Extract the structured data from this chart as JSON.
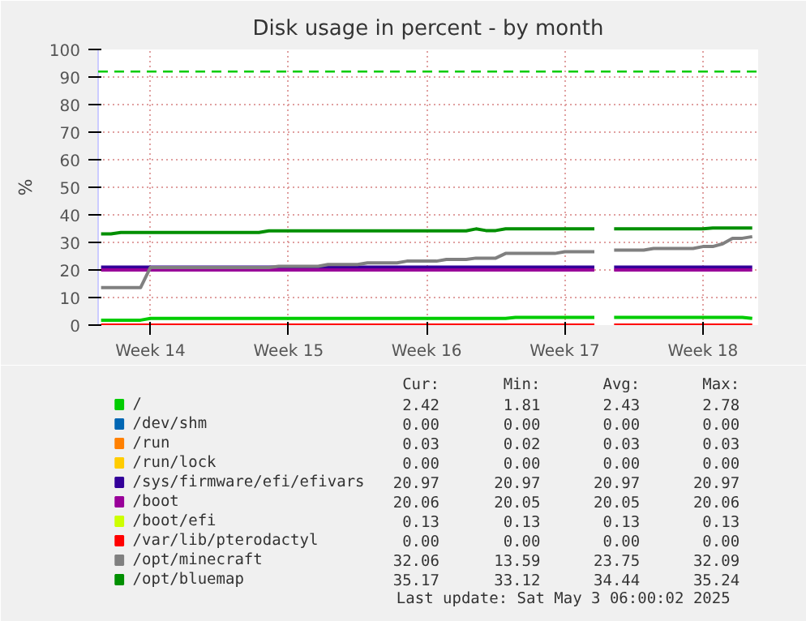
{
  "chart_data": {
    "type": "line",
    "title": "Disk usage in percent - by month",
    "ylabel": "%",
    "categories": [
      null,
      null,
      null,
      null,
      null,
      "Week 14",
      null,
      null,
      null,
      null,
      null,
      null,
      null,
      null,
      null,
      null,
      null,
      null,
      null,
      "Week 15",
      null,
      null,
      null,
      null,
      null,
      null,
      null,
      null,
      null,
      null,
      null,
      null,
      null,
      "Week 16",
      null,
      null,
      null,
      null,
      null,
      null,
      null,
      null,
      null,
      null,
      null,
      null,
      null,
      "Week 17",
      null,
      null,
      null,
      null,
      null,
      null,
      null,
      null,
      null,
      null,
      null,
      null,
      null,
      "Week 18",
      null,
      null,
      null,
      null,
      null
    ],
    "ylim": [
      0,
      100
    ],
    "yticks": [
      0,
      10,
      20,
      30,
      40,
      50,
      60,
      70,
      80,
      90,
      100
    ],
    "grid": true,
    "legend": "bottom",
    "line_style": "solid",
    "marker": "none",
    "ref_lines": [
      {
        "axis": "y",
        "value": 92,
        "color": "#00cc00",
        "line_style": "dashed"
      }
    ],
    "series": [
      {
        "name": "/",
        "color": "#00cc00",
        "values": [
          1.8,
          1.8,
          1.8,
          1.8,
          1.8,
          2.4,
          2.4,
          2.4,
          2.4,
          2.4,
          2.4,
          2.4,
          2.4,
          2.4,
          2.4,
          2.4,
          2.4,
          2.4,
          2.4,
          2.4,
          2.4,
          2.4,
          2.4,
          2.4,
          2.4,
          2.4,
          2.4,
          2.4,
          2.4,
          2.4,
          2.4,
          2.4,
          2.4,
          2.4,
          2.4,
          2.4,
          2.4,
          2.4,
          2.4,
          2.4,
          2.4,
          2.4,
          2.8,
          2.8,
          2.8,
          2.8,
          2.8,
          2.8,
          2.8,
          2.8,
          2.8,
          null,
          2.8,
          2.8,
          2.8,
          2.8,
          2.8,
          2.8,
          2.8,
          2.8,
          2.8,
          2.8,
          2.8,
          2.8,
          2.8,
          2.8,
          2.4
        ]
      },
      {
        "name": "/dev/shm",
        "color": "#0066b3",
        "values": [
          null,
          null,
          null,
          null,
          null,
          null,
          null,
          null,
          null,
          null,
          null,
          null,
          null,
          null,
          null,
          null,
          null,
          null,
          null,
          null,
          null,
          null,
          null,
          null,
          null,
          null,
          null,
          null,
          null,
          null,
          null,
          null,
          null,
          null,
          null,
          null,
          null,
          null,
          null,
          null,
          null,
          null,
          null,
          null,
          null,
          null,
          null,
          null,
          null,
          null,
          null,
          null,
          null,
          null,
          null,
          null,
          null,
          null,
          null,
          null,
          null,
          null,
          null,
          null,
          null,
          null,
          null
        ]
      },
      {
        "name": "/run",
        "color": "#ff8000",
        "values": [
          null,
          null,
          null,
          null,
          null,
          null,
          null,
          null,
          null,
          null,
          null,
          null,
          null,
          null,
          null,
          null,
          null,
          null,
          null,
          null,
          null,
          null,
          null,
          null,
          null,
          null,
          null,
          null,
          null,
          null,
          null,
          null,
          null,
          null,
          null,
          null,
          null,
          null,
          null,
          null,
          null,
          null,
          null,
          null,
          null,
          null,
          null,
          null,
          null,
          null,
          null,
          null,
          null,
          null,
          null,
          null,
          null,
          null,
          null,
          null,
          null,
          null,
          null,
          null,
          null,
          null,
          null
        ]
      },
      {
        "name": "/run/lock",
        "color": "#ffcc00",
        "values": [
          null,
          null,
          null,
          null,
          null,
          null,
          null,
          null,
          null,
          null,
          null,
          null,
          null,
          null,
          null,
          null,
          null,
          null,
          null,
          null,
          null,
          null,
          null,
          null,
          null,
          null,
          null,
          null,
          null,
          null,
          null,
          null,
          null,
          null,
          null,
          null,
          null,
          null,
          null,
          null,
          null,
          null,
          null,
          null,
          null,
          null,
          null,
          null,
          null,
          null,
          null,
          null,
          null,
          null,
          null,
          null,
          null,
          null,
          null,
          null,
          null,
          null,
          null,
          null,
          null,
          null,
          null
        ]
      },
      {
        "name": "/sys/firmware/efi/efivars",
        "color": "#330099",
        "values": [
          21,
          21,
          21,
          21,
          21,
          21,
          21,
          21,
          21,
          21,
          21,
          21,
          21,
          21,
          21,
          21,
          21,
          21,
          21,
          21,
          21,
          21,
          21,
          21,
          21,
          21,
          21,
          21,
          21,
          21,
          21,
          21,
          21,
          21,
          21,
          21,
          21,
          21,
          21,
          21,
          21,
          21,
          21,
          21,
          21,
          21,
          21,
          21,
          21,
          21,
          21,
          null,
          21,
          21,
          21,
          21,
          21,
          21,
          21,
          21,
          21,
          21,
          21,
          21,
          21,
          21,
          21
        ]
      },
      {
        "name": "/boot",
        "color": "#990099",
        "values": [
          20,
          20,
          20,
          20,
          20,
          20,
          20,
          20,
          20,
          20,
          20,
          20,
          20,
          20,
          20,
          20,
          20,
          20,
          20,
          20,
          20,
          20,
          20,
          20,
          20,
          20,
          20,
          20,
          20,
          20,
          20,
          20,
          20,
          20,
          20,
          20,
          20,
          20,
          20,
          20,
          20,
          20,
          20,
          20,
          20,
          20,
          20,
          20,
          20,
          20,
          20,
          null,
          20,
          20,
          20,
          20,
          20,
          20,
          20,
          20,
          20,
          20,
          20,
          20,
          20,
          20,
          20
        ]
      },
      {
        "name": "/boot/efi",
        "color": "#ccff00",
        "values": [
          null,
          null,
          null,
          null,
          null,
          null,
          null,
          null,
          null,
          null,
          null,
          null,
          null,
          null,
          null,
          null,
          null,
          null,
          null,
          null,
          null,
          null,
          null,
          null,
          null,
          null,
          null,
          null,
          null,
          null,
          null,
          null,
          null,
          null,
          null,
          null,
          null,
          null,
          null,
          null,
          null,
          null,
          null,
          null,
          null,
          null,
          null,
          null,
          null,
          null,
          null,
          null,
          null,
          null,
          null,
          null,
          null,
          null,
          null,
          null,
          null,
          null,
          null,
          null,
          null,
          null,
          null
        ]
      },
      {
        "name": "/var/lib/pterodactyl",
        "color": "#ff0000",
        "values": [
          0,
          0,
          0,
          0,
          0,
          0,
          0,
          0,
          0,
          0,
          0,
          0,
          0,
          0,
          0,
          0,
          0,
          0,
          0,
          0,
          0,
          0,
          0,
          0,
          0,
          0,
          0,
          0,
          0,
          0,
          0,
          0,
          0,
          0,
          0,
          0,
          0,
          0,
          0,
          0,
          0,
          0,
          0,
          0,
          0,
          0,
          0,
          0,
          0,
          0,
          0,
          null,
          0,
          0,
          0,
          0,
          0,
          0,
          0,
          0,
          0,
          0,
          0,
          0,
          0,
          0,
          0
        ]
      },
      {
        "name": "/opt/minecraft",
        "color": "#808080",
        "values": [
          13.6,
          13.6,
          13.6,
          13.6,
          13.6,
          20.9,
          20.9,
          20.9,
          20.9,
          20.9,
          20.9,
          20.9,
          20.9,
          20.9,
          20.9,
          20.9,
          20.9,
          20.9,
          21.3,
          21.3,
          21.3,
          21.3,
          21.3,
          22,
          22,
          22,
          22,
          22.6,
          22.6,
          22.6,
          22.6,
          23.2,
          23.2,
          23.2,
          23.2,
          23.8,
          23.8,
          23.8,
          24.3,
          24.3,
          24.3,
          26,
          26,
          26,
          26,
          26,
          26,
          26.6,
          26.6,
          26.6,
          26.6,
          null,
          27.2,
          27.2,
          27.2,
          27.2,
          27.8,
          27.8,
          27.8,
          27.8,
          27.8,
          28.5,
          28.5,
          29.5,
          31.5,
          31.5,
          32.1
        ]
      },
      {
        "name": "/opt/bluemap",
        "color": "#008f00",
        "values": [
          33.1,
          33.1,
          33.6,
          33.6,
          33.6,
          33.6,
          33.6,
          33.6,
          33.6,
          33.6,
          33.6,
          33.6,
          33.6,
          33.6,
          33.6,
          33.6,
          33.6,
          34.2,
          34.2,
          34.2,
          34.2,
          34.2,
          34.2,
          34.2,
          34.2,
          34.2,
          34.2,
          34.2,
          34.2,
          34.2,
          34.2,
          34.2,
          34.2,
          34.2,
          34.2,
          34.2,
          34.2,
          34.2,
          34.9,
          34.3,
          34.3,
          34.9,
          34.9,
          34.9,
          34.9,
          34.9,
          34.9,
          34.9,
          34.9,
          34.9,
          34.9,
          null,
          34.9,
          34.9,
          34.9,
          34.9,
          34.9,
          34.9,
          34.9,
          34.9,
          34.9,
          34.9,
          35.2,
          35.2,
          35.2,
          35.2,
          35.2
        ]
      }
    ],
    "annotations": [
      "Cur:",
      "Min:",
      "Avg:",
      "Max:",
      "2.42",
      "1.81",
      "2.43",
      "2.78",
      "0.00",
      "0.00",
      "0.00",
      "0.00",
      "0.03",
      "0.02",
      "0.03",
      "0.03",
      "0.00",
      "0.00",
      "0.00",
      "0.00",
      "20.97",
      "20.97",
      "20.97",
      "20.97",
      "20.06",
      "20.05",
      "20.05",
      "20.06",
      "0.13",
      "0.13",
      "0.13",
      "0.13",
      "0.00",
      "0.00",
      "0.00",
      "0.00",
      "32.06",
      "13.59",
      "23.75",
      "32.09",
      "35.17",
      "33.12",
      "34.44",
      "35.24",
      "Last update: Sat May  3 06:00:02 2025"
    ]
  }
}
